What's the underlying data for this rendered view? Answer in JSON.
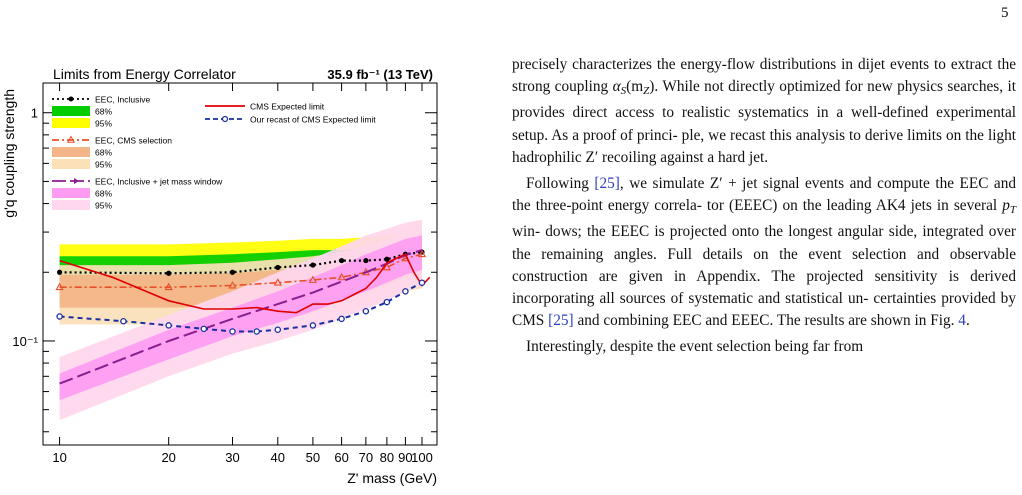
{
  "page_number": "5",
  "chart_data": {
    "type": "line",
    "title": "Limits from Energy Correlator",
    "title_right": "35.9 fb⁻¹ (13 TeV)",
    "xlabel": "Z' mass (GeV)",
    "ylabel": "g'q coupling strength",
    "x_scale": "log",
    "y_scale": "log",
    "xlim": [
      9,
      110
    ],
    "ylim": [
      0.035,
      1.35
    ],
    "x_ticks": [
      10,
      20,
      30,
      40,
      50,
      60,
      70,
      80,
      90,
      100
    ],
    "x_tick_labels": [
      "10",
      "20",
      "30",
      "40",
      "50",
      "60",
      "70",
      "80",
      "90",
      "100"
    ],
    "y_tick_labels": [
      "10⁻¹",
      "1"
    ],
    "legend": {
      "left": [
        {
          "label": "EEC, Inclusive"
        },
        {
          "label": "68%"
        },
        {
          "label": "95%"
        },
        {
          "label": "EEC, CMS selection"
        },
        {
          "label": "68%"
        },
        {
          "label": "95%"
        },
        {
          "label": "EEC, Inclusive + jet mass window"
        },
        {
          "label": "68%"
        },
        {
          "label": "95%"
        }
      ],
      "right": [
        {
          "label": "CMS Expected limit"
        },
        {
          "label": "Our recast of CMS Expected limit"
        }
      ]
    },
    "bands": [
      {
        "name": "inclusive_95",
        "color": "#ffff00",
        "x": [
          10,
          20,
          30,
          40,
          50,
          60,
          70,
          80,
          90,
          100
        ],
        "lower": [
          0.15,
          0.15,
          0.152,
          0.16,
          0.165,
          0.17,
          0.175,
          0.18,
          0.19,
          0.19
        ],
        "upper": [
          0.265,
          0.265,
          0.27,
          0.275,
          0.28,
          0.28,
          0.285,
          0.29,
          0.3,
          0.3
        ]
      },
      {
        "name": "inclusive_68",
        "color": "#00cc00",
        "x": [
          10,
          20,
          30,
          40,
          50,
          60,
          70,
          80,
          90,
          100
        ],
        "lower": [
          0.175,
          0.175,
          0.178,
          0.185,
          0.19,
          0.195,
          0.2,
          0.205,
          0.21,
          0.21
        ],
        "upper": [
          0.235,
          0.235,
          0.24,
          0.245,
          0.25,
          0.25,
          0.255,
          0.258,
          0.265,
          0.265
        ]
      },
      {
        "name": "cms_selection_95",
        "color": "#fbe0b8",
        "x": [
          10,
          20,
          30,
          40,
          50,
          60,
          70,
          80,
          90,
          100
        ],
        "lower": [
          0.118,
          0.118,
          0.12,
          0.125,
          0.13,
          0.135,
          0.14,
          0.15,
          0.165,
          0.17
        ],
        "upper": [
          0.215,
          0.215,
          0.22,
          0.228,
          0.235,
          0.245,
          0.26,
          0.28,
          0.32,
          0.34
        ]
      },
      {
        "name": "cms_selection_68",
        "color": "#f3b487",
        "x": [
          10,
          20,
          30,
          40,
          50,
          60,
          70,
          80,
          90,
          100
        ],
        "lower": [
          0.14,
          0.14,
          0.142,
          0.147,
          0.152,
          0.158,
          0.165,
          0.175,
          0.19,
          0.195
        ],
        "upper": [
          0.195,
          0.195,
          0.198,
          0.205,
          0.212,
          0.22,
          0.232,
          0.25,
          0.28,
          0.29
        ]
      },
      {
        "name": "jetmass_95",
        "color": "#ffd7ee",
        "x": [
          10,
          20,
          30,
          40,
          50,
          60,
          70,
          80,
          90,
          100
        ],
        "lower": [
          0.045,
          0.07,
          0.088,
          0.1,
          0.112,
          0.125,
          0.138,
          0.15,
          0.165,
          0.175
        ],
        "upper": [
          0.085,
          0.13,
          0.165,
          0.2,
          0.23,
          0.26,
          0.29,
          0.31,
          0.33,
          0.34
        ]
      },
      {
        "name": "jetmass_68",
        "color": "#ff9cf2",
        "x": [
          10,
          20,
          30,
          40,
          50,
          60,
          70,
          80,
          90,
          100
        ],
        "lower": [
          0.055,
          0.083,
          0.105,
          0.12,
          0.135,
          0.15,
          0.165,
          0.18,
          0.195,
          0.205
        ],
        "upper": [
          0.072,
          0.112,
          0.14,
          0.165,
          0.19,
          0.215,
          0.24,
          0.26,
          0.28,
          0.29
        ]
      }
    ],
    "series": [
      {
        "name": "EEC, Inclusive",
        "color": "#000000",
        "style": "dotted-circle",
        "x": [
          10,
          20,
          30,
          40,
          50,
          60,
          70,
          80,
          90,
          100
        ],
        "y": [
          0.2,
          0.198,
          0.2,
          0.21,
          0.215,
          0.225,
          0.225,
          0.228,
          0.24,
          0.245
        ]
      },
      {
        "name": "EEC, CMS selection",
        "color": "#e8502a",
        "style": "dashdot-triangle",
        "x": [
          10,
          20,
          30,
          40,
          50,
          60,
          70,
          80,
          90,
          100
        ],
        "y": [
          0.172,
          0.172,
          0.175,
          0.18,
          0.185,
          0.19,
          0.2,
          0.21,
          0.23,
          0.24
        ]
      },
      {
        "name": "EEC, Inclusive + jet mass window",
        "color": "#8a1d8f",
        "style": "longdash-arrow",
        "x": [
          10,
          20,
          30,
          40,
          50,
          60,
          70,
          80,
          90,
          100
        ],
        "y": [
          0.065,
          0.1,
          0.125,
          0.145,
          0.163,
          0.182,
          0.2,
          0.218,
          0.238,
          0.25
        ]
      },
      {
        "name": "CMS Expected limit",
        "color": "#e00000",
        "style": "solid",
        "x": [
          10,
          14,
          20,
          25,
          30,
          35,
          40,
          45,
          50,
          55,
          60,
          65,
          70,
          75,
          80,
          85,
          90,
          95,
          100,
          105
        ],
        "y": [
          0.225,
          0.19,
          0.15,
          0.138,
          0.138,
          0.14,
          0.135,
          0.133,
          0.145,
          0.145,
          0.15,
          0.16,
          0.17,
          0.19,
          0.22,
          0.23,
          0.24,
          0.2,
          0.175,
          0.19
        ]
      },
      {
        "name": "Our recast of CMS Expected limit",
        "color": "#1a2fa0",
        "style": "dashed-circle",
        "x": [
          10,
          15,
          20,
          25,
          30,
          35,
          40,
          50,
          60,
          70,
          80,
          90,
          100
        ],
        "y": [
          0.128,
          0.122,
          0.117,
          0.113,
          0.11,
          0.11,
          0.112,
          0.117,
          0.125,
          0.135,
          0.148,
          0.165,
          0.18
        ]
      }
    ]
  },
  "text": {
    "p1_line1": "precisely characterizes the energy-flow distributions in",
    "p1_line2_pre": "dijet events to extract the strong coupling ",
    "p1_line2_math": "α",
    "p1_line2_sub": "S",
    "p1_line2_post": "(m",
    "p1_line2_sub2": "Z",
    "p1_line2_end": ").",
    "p1_line3": "While not directly optimized for new physics searches,",
    "p1_line4": "it provides direct access to realistic systematics in a",
    "p1_line5": "well-defined experimental setup. As a proof of princi-",
    "p1_line6": "ple, we recast this analysis to derive limits on the light",
    "p1_line7": "hadrophilic Z′ recoiling against a hard jet.",
    "p2_line1_pre": "Following ",
    "p2_cite1": "[25]",
    "p2_line1_post": ", we simulate Z′ + jet signal events and",
    "p2_line2": "compute the EEC and the three-point energy correla-",
    "p2_line3_pre": "tor (EEEC) on the leading AK4 jets in several ",
    "p2_line3_math": "p",
    "p2_line3_sub": "T",
    "p2_line3_post": " win-",
    "p2_line4": "dows; the EEEC is projected onto the longest angular",
    "p2_line5": "side, integrated over the remaining angles. Full details",
    "p2_line6": "on the event selection and observable construction are",
    "p2_line7": "given in Appendix. The projected sensitivity is derived",
    "p2_line8": "incorporating all sources of systematic and statistical un-",
    "p2_line9_pre": "certainties provided by CMS ",
    "p2_cite2": "[25]",
    "p2_line9_post": " and combining EEC",
    "p2_line10_pre": "and EEEC. The results are shown in Fig. ",
    "p2_fig": "4",
    "p2_line10_post": ".",
    "p3_line1": "Interestingly, despite the event selection being far from"
  }
}
